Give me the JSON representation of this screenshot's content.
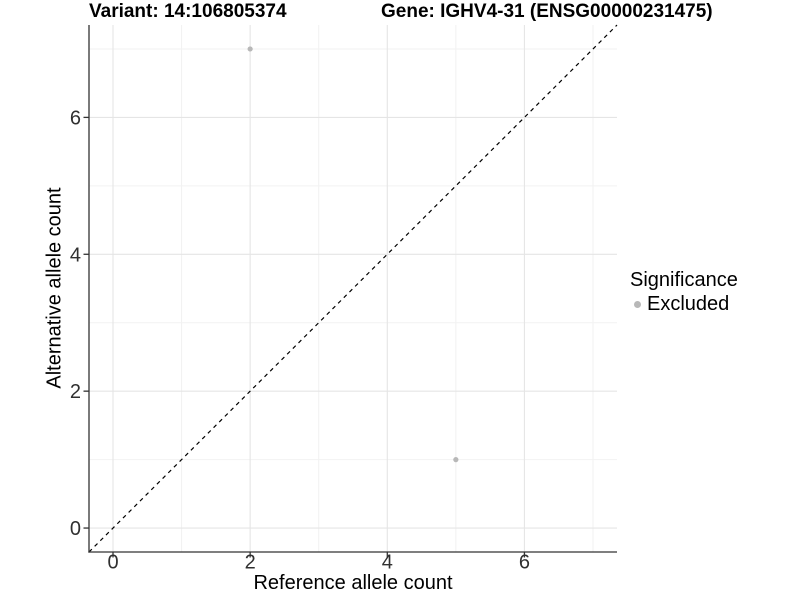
{
  "chart_data": {
    "type": "scatter",
    "title_left": "Variant: 14:106805374",
    "title_right": "Gene: IGHV4-31 (ENSG00000231475)",
    "xlabel": "Reference allele count",
    "ylabel": "Alternative allele count",
    "xlim": [
      0,
      7
    ],
    "ylim": [
      0,
      7
    ],
    "axis_expansion": 0.35,
    "x_major_ticks": [
      0,
      2,
      4,
      6
    ],
    "y_major_ticks": [
      0,
      2,
      4,
      6
    ],
    "x_minor_gridlines": [
      1,
      3,
      5,
      7
    ],
    "y_minor_gridlines": [
      1,
      3,
      5,
      7
    ],
    "grid": "major and minor gridlines on",
    "identity_line": {
      "equation": "y = x",
      "style": "dashed",
      "color": "#000000"
    },
    "series": [
      {
        "name": "Excluded",
        "color": "#B8B8B8",
        "points": [
          {
            "x": 2,
            "y": 7
          },
          {
            "x": 5,
            "y": 1
          }
        ]
      }
    ]
  },
  "legend": {
    "title": "Significance",
    "position": "right",
    "items": [
      {
        "label": "Excluded",
        "color": "#B8B8B8",
        "marker": "circle"
      }
    ]
  },
  "style": {
    "background": "#FFFFFF",
    "axis_line_color": "#333333",
    "tick_color": "#333333",
    "tick_label_color": "#303030",
    "grid_major_color": "#E5E5E5",
    "grid_minor_color": "#F2F2F2",
    "text_color": "#000000"
  }
}
